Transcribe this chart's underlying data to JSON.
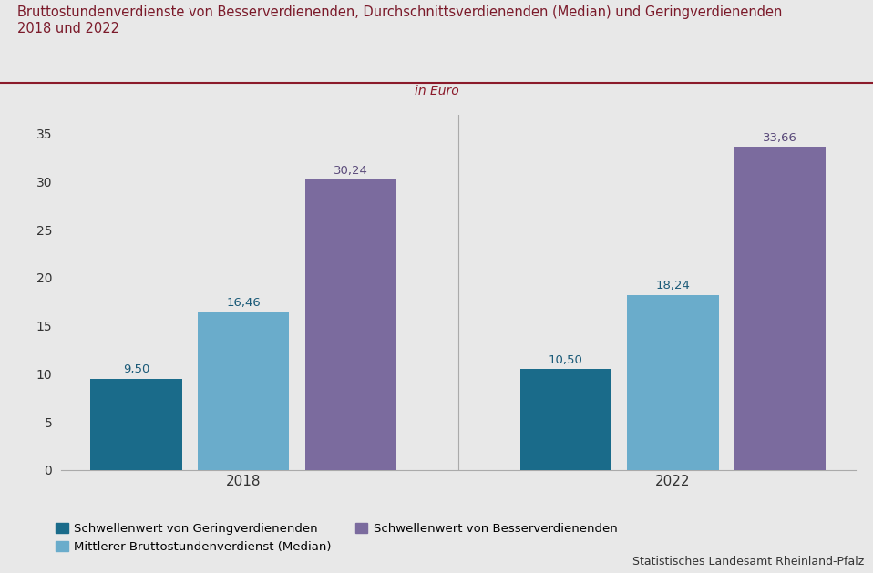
{
  "title_line1": "Bruttostundenverdienste von Besserverdienenden, Durchschnittsverdienenden (Median) und Geringverdienenden",
  "title_line2": "2018 und 2022",
  "subtitle": "in Euro",
  "source": "Statistisches Landesamt Rheinland-Pfalz",
  "years": [
    "2018",
    "2022"
  ],
  "categories": [
    "Schwellenwert von Geringverdienenden",
    "Mittlerer Bruttostundenverdienst (Median)",
    "Schwellenwert von Besserverdienenden"
  ],
  "values_2018": [
    9.5,
    16.46,
    30.24
  ],
  "values_2022": [
    10.5,
    18.24,
    33.66
  ],
  "colors": [
    "#1a6b8a",
    "#6aaccb",
    "#7b6b9e"
  ],
  "ylim": [
    0,
    37
  ],
  "yticks": [
    0,
    5,
    10,
    15,
    20,
    25,
    30,
    35
  ],
  "background_color": "#e8e8e8",
  "title_color": "#7b1a2a",
  "subtitle_color": "#8b1a2a",
  "axis_label_color": "#333333",
  "value_label_colors": [
    "#1a5a78",
    "#1a5a78",
    "#5a4a7a"
  ],
  "separator_color": "#8b1a2a"
}
